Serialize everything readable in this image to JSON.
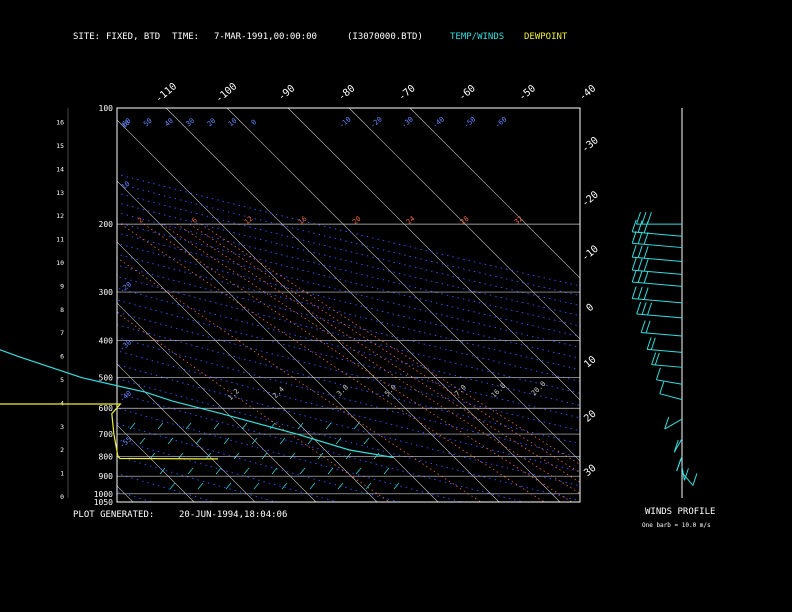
{
  "header": {
    "site_label": "SITE:",
    "site_value": "FIXED, BTD",
    "time_label": "TIME:",
    "time_value": "7-MAR-1991,00:00:00",
    "file": "(I3070000.BTD)",
    "temp_winds_legend": "TEMP/WINDS",
    "dewpoint_legend": "DEWPOINT"
  },
  "footer": {
    "plot_generated_label": "PLOT GENERATED:",
    "plot_generated_value": "20-JUN-1994,18:04:06"
  },
  "winds_profile": {
    "title": "WINDS PROFILE",
    "note": "One barb = 10.0 m/s"
  },
  "colors": {
    "background": "#000000",
    "frame": "#ffffff",
    "temperature": "#33dddd",
    "dewpoint": "#eeee33",
    "isotherm": "#cccccc",
    "dry_adiabat": "#3355ff",
    "moist_adiabat": "#ff3333",
    "mixing_ratio": "#ee6644",
    "wind_marks": "#33dddd",
    "theta_labels": "#6688ff",
    "mixing_labels": "#ee6644"
  },
  "chart_data": {
    "type": "line",
    "title": "",
    "pressure_levels_hPa": [
      "100",
      "200",
      "300",
      "400",
      "500",
      "600",
      "700",
      "800",
      "900",
      "1000",
      "1050"
    ],
    "height_km_ticks": [
      "0",
      "1",
      "2",
      "3",
      "4",
      "5",
      "6",
      "7",
      "8",
      "9",
      "10",
      "11",
      "12",
      "13",
      "14",
      "15",
      "16"
    ],
    "top_temperature_labels": [
      "-110",
      "-100",
      "-90",
      "-80",
      "-70",
      "-60",
      "-50",
      "-40"
    ],
    "right_temperature_labels": [
      "-30",
      "-20",
      "-10",
      "0",
      "10",
      "20",
      "30"
    ],
    "theta_labels": [
      "60",
      "50",
      "40",
      "30",
      "20",
      "10",
      "0",
      "-10",
      "-20",
      "-30",
      "-40",
      "-50",
      "-60"
    ],
    "theta_side_labels": [
      "10",
      "10",
      "-20",
      "-30",
      "-40",
      "-55"
    ],
    "mixing_ratio_labels": [
      "2",
      "6",
      "12",
      "16",
      "20",
      "24",
      "28",
      "32"
    ],
    "sounding_labels": [
      "1.2",
      "2.4",
      "3.8",
      "5.0",
      "7.0",
      "16.0",
      "20.0"
    ],
    "temperature_profile": [
      {
        "p": 205,
        "t": -52
      },
      {
        "p": 218,
        "t": -56
      },
      {
        "p": 240,
        "t": -60
      },
      {
        "p": 265,
        "t": -61
      },
      {
        "p": 295,
        "t": -61
      },
      {
        "p": 330,
        "t": -56
      },
      {
        "p": 380,
        "t": -52
      },
      {
        "p": 440,
        "t": -45
      },
      {
        "p": 500,
        "t": -38
      },
      {
        "p": 545,
        "t": -30
      },
      {
        "p": 575,
        "t": -27
      },
      {
        "p": 620,
        "t": -21
      },
      {
        "p": 700,
        "t": -12
      },
      {
        "p": 770,
        "t": -6
      },
      {
        "p": 805,
        "t": 0
      }
    ],
    "dewpoint_profile": [
      {
        "p": 207,
        "t": -90
      },
      {
        "p": 212,
        "t": -93
      },
      {
        "p": 220,
        "t": -95
      },
      {
        "p": 245,
        "t": -93
      },
      {
        "p": 265,
        "t": -88
      },
      {
        "p": 300,
        "t": -77
      },
      {
        "p": 320,
        "t": -71
      },
      {
        "p": 360,
        "t": -65
      },
      {
        "p": 400,
        "t": -58
      },
      {
        "p": 460,
        "t": -60
      },
      {
        "p": 490,
        "t": -63
      },
      {
        "p": 530,
        "t": -65
      },
      {
        "p": 555,
        "t": -73
      },
      {
        "p": 575,
        "t": -72
      },
      {
        "p": 585,
        "t": -63
      },
      {
        "p": 585,
        "t": -36
      },
      {
        "p": 620,
        "t": -39
      },
      {
        "p": 700,
        "t": -42
      },
      {
        "p": 800,
        "t": -45
      },
      {
        "p": 810,
        "t": -45
      },
      {
        "p": 812,
        "t": -32
      },
      {
        "p": 812,
        "t": -29
      }
    ],
    "winds": [
      {
        "p": 200,
        "spd": 25,
        "dir": 270
      },
      {
        "p": 215,
        "spd": 30,
        "dir": 275
      },
      {
        "p": 230,
        "spd": 30,
        "dir": 275
      },
      {
        "p": 250,
        "spd": 32,
        "dir": 275
      },
      {
        "p": 270,
        "spd": 32,
        "dir": 275
      },
      {
        "p": 290,
        "spd": 30,
        "dir": 275
      },
      {
        "p": 320,
        "spd": 28,
        "dir": 275
      },
      {
        "p": 350,
        "spd": 25,
        "dir": 275
      },
      {
        "p": 390,
        "spd": 22,
        "dir": 275
      },
      {
        "p": 430,
        "spd": 18,
        "dir": 275
      },
      {
        "p": 470,
        "spd": 15,
        "dir": 275
      },
      {
        "p": 520,
        "spd": 12,
        "dir": 280
      },
      {
        "p": 570,
        "spd": 10,
        "dir": 285
      },
      {
        "p": 640,
        "spd": 8,
        "dir": 240
      },
      {
        "p": 720,
        "spd": 5,
        "dir": 210
      },
      {
        "p": 800,
        "spd": 5,
        "dir": 200
      },
      {
        "p": 850,
        "spd": 4,
        "dir": 170
      },
      {
        "p": 880,
        "spd": 6,
        "dir": 140
      }
    ]
  }
}
